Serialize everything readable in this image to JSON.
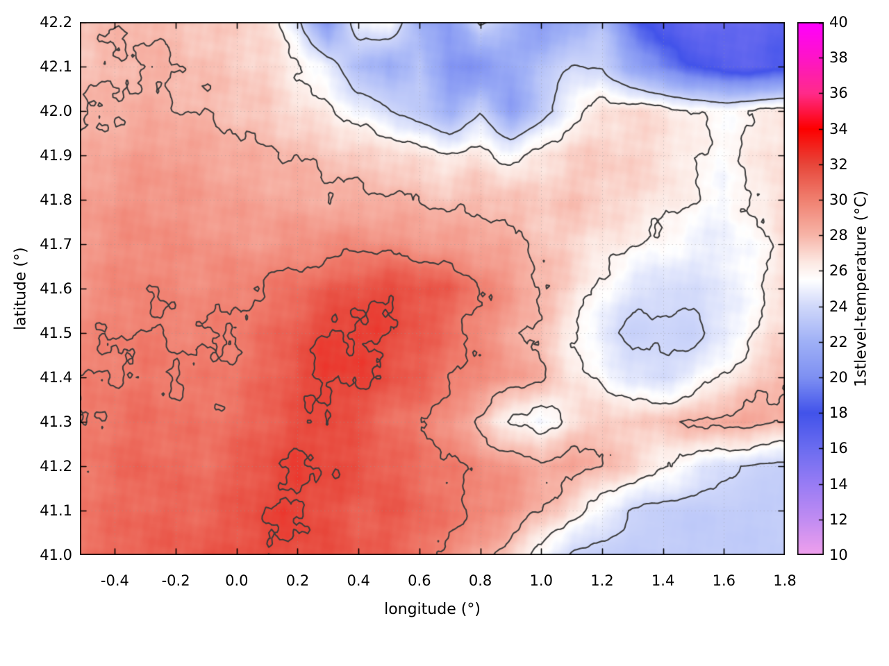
{
  "chart_data": {
    "type": "heatmap",
    "title": "",
    "xlabel": "longitude (°)",
    "ylabel": "latitude (°)",
    "colorbar_label": "1stlevel-temperature (°C)",
    "x_range": [
      -0.515,
      1.8
    ],
    "y_range": [
      41.0,
      42.2
    ],
    "colorbar_range": [
      10,
      40
    ],
    "x_tick_values": [
      -0.4,
      -0.2,
      0.0,
      0.2,
      0.4,
      0.6,
      0.8,
      1.0,
      1.2,
      1.4,
      1.6,
      1.8
    ],
    "x_tick_labels": [
      "-0.4",
      "-0.2",
      "0.0",
      "0.2",
      "0.4",
      "0.6",
      "0.8",
      "1.0",
      "1.2",
      "1.4",
      "1.6",
      "1.8"
    ],
    "y_tick_values": [
      41.0,
      41.1,
      41.2,
      41.3,
      41.4,
      41.5,
      41.6,
      41.7,
      41.8,
      41.9,
      42.0,
      42.1,
      42.2
    ],
    "y_tick_labels": [
      "41.0",
      "41.1",
      "41.2",
      "41.3",
      "41.4",
      "41.5",
      "41.6",
      "41.7",
      "41.8",
      "41.9",
      "42.0",
      "42.1",
      "42.2"
    ],
    "colorbar_tick_values": [
      10,
      12,
      14,
      16,
      18,
      20,
      22,
      24,
      26,
      28,
      30,
      32,
      34,
      36,
      38,
      40
    ],
    "colorbar_tick_labels": [
      "10",
      "12",
      "14",
      "16",
      "18",
      "20",
      "22",
      "24",
      "26",
      "28",
      "30",
      "32",
      "34",
      "36",
      "38",
      "40"
    ],
    "contour_levels": [
      24,
      26,
      28,
      30,
      32
    ],
    "contour_color": "#3b3b3b",
    "grid_dot_color": "rgba(150,150,150,0.45)",
    "palette": [
      [
        10,
        "#f0a0ec"
      ],
      [
        12,
        "#c18cf2"
      ],
      [
        14,
        "#987cf4"
      ],
      [
        16,
        "#6b6cf0"
      ],
      [
        18,
        "#4253ea"
      ],
      [
        20,
        "#7e90f2"
      ],
      [
        22,
        "#9fb0f6"
      ],
      [
        24,
        "#d0d8fa"
      ],
      [
        25.5,
        "#ffffff"
      ],
      [
        26.5,
        "#fce8e2"
      ],
      [
        28,
        "#f7b5a8"
      ],
      [
        30,
        "#f08070"
      ],
      [
        32,
        "#e7463a"
      ],
      [
        34,
        "#fd0000"
      ],
      [
        36,
        "#ff2b8a"
      ],
      [
        38,
        "#fe14c8"
      ],
      [
        40,
        "#ff00ff"
      ]
    ],
    "grid": {
      "lon_start": -0.5,
      "lon_step": 0.1,
      "ncols": 24,
      "lat_start": 42.2,
      "lat_step": -0.1,
      "nrows": 13,
      "order": "rows from north (lat 42.2) to south (lat 41.0), lon -0.5 to 1.8",
      "values_degC": [
        [
          27.6,
          27.8,
          28.0,
          27.7,
          27.4,
          27.1,
          26.8,
          24.5,
          20.5,
          25.2,
          25.5,
          22.0,
          20.5,
          24.5,
          22.5,
          20.5,
          21.5,
          23.0,
          19.0,
          17.0,
          16.2,
          16.0,
          16.2,
          16.8
        ],
        [
          27.6,
          27.9,
          28.1,
          27.9,
          27.6,
          27.4,
          27.1,
          26.2,
          24.8,
          22.5,
          21.5,
          23.2,
          20.5,
          20.0,
          21.5,
          22.8,
          24.2,
          23.8,
          21.5,
          19.5,
          18.0,
          17.0,
          16.8,
          17.5
        ],
        [
          27.9,
          28.1,
          28.3,
          28.1,
          27.9,
          27.6,
          27.3,
          26.7,
          26.2,
          25.2,
          24.2,
          23.2,
          21.8,
          23.8,
          21.0,
          23.2,
          25.6,
          26.6,
          26.9,
          26.6,
          26.1,
          25.6,
          26.1,
          26.6
        ],
        [
          28.3,
          28.6,
          28.9,
          28.9,
          28.6,
          28.3,
          28.1,
          27.9,
          27.6,
          27.3,
          27.1,
          26.6,
          26.1,
          26.6,
          25.6,
          26.6,
          27.1,
          27.3,
          27.1,
          26.9,
          26.1,
          25.6,
          26.3,
          26.9
        ],
        [
          28.9,
          29.1,
          29.3,
          29.1,
          28.9,
          28.7,
          28.6,
          28.4,
          28.3,
          28.1,
          28.1,
          27.9,
          27.6,
          27.9,
          27.6,
          27.3,
          27.6,
          27.3,
          26.9,
          26.6,
          25.9,
          25.3,
          26.1,
          27.1
        ],
        [
          29.1,
          29.4,
          29.6,
          29.4,
          29.3,
          29.1,
          29.1,
          29.3,
          29.4,
          29.6,
          29.4,
          29.1,
          28.9,
          28.6,
          28.3,
          27.6,
          27.1,
          26.6,
          26.1,
          25.6,
          25.1,
          24.9,
          25.6,
          26.6
        ],
        [
          29.3,
          29.6,
          29.9,
          29.6,
          29.6,
          29.9,
          30.1,
          30.6,
          31.1,
          31.6,
          31.9,
          31.6,
          31.1,
          30.1,
          29.1,
          28.1,
          27.1,
          25.6,
          24.6,
          24.1,
          24.3,
          24.6,
          25.6,
          26.6
        ],
        [
          29.6,
          29.9,
          30.1,
          29.9,
          29.9,
          30.1,
          30.6,
          31.3,
          32.1,
          32.3,
          31.9,
          31.3,
          30.6,
          29.6,
          28.6,
          27.6,
          26.1,
          24.6,
          23.6,
          23.9,
          23.6,
          24.6,
          25.9,
          27.1
        ],
        [
          29.9,
          30.1,
          30.3,
          30.1,
          30.1,
          30.3,
          30.9,
          31.6,
          32.3,
          32.1,
          31.6,
          31.1,
          30.3,
          29.6,
          29.1,
          28.1,
          26.6,
          25.6,
          24.6,
          24.1,
          24.9,
          26.1,
          27.1,
          28.1
        ],
        [
          30.1,
          30.4,
          30.6,
          30.4,
          30.3,
          30.6,
          31.1,
          31.6,
          31.9,
          31.3,
          30.6,
          30.1,
          29.3,
          27.6,
          25.6,
          25.1,
          26.6,
          27.6,
          27.1,
          27.6,
          28.1,
          28.6,
          28.6,
          28.1
        ],
        [
          30.3,
          30.6,
          30.9,
          30.6,
          30.6,
          31.1,
          31.6,
          32.1,
          31.9,
          31.6,
          31.1,
          30.6,
          30.1,
          29.6,
          29.1,
          28.6,
          28.6,
          28.1,
          27.1,
          26.1,
          25.1,
          24.3,
          23.8,
          23.5
        ],
        [
          30.4,
          30.6,
          30.9,
          30.9,
          30.9,
          31.3,
          31.9,
          32.1,
          31.6,
          31.1,
          31.3,
          30.9,
          30.3,
          29.9,
          29.3,
          28.1,
          26.6,
          25.1,
          23.9,
          23.5,
          23.4,
          23.4,
          23.4,
          23.4
        ],
        [
          30.6,
          30.9,
          31.1,
          31.1,
          31.3,
          31.6,
          31.9,
          31.9,
          31.6,
          31.3,
          31.1,
          30.6,
          29.6,
          28.6,
          27.1,
          25.1,
          23.9,
          23.5,
          23.4,
          23.4,
          23.4,
          23.4,
          23.4,
          23.4
        ]
      ]
    }
  }
}
